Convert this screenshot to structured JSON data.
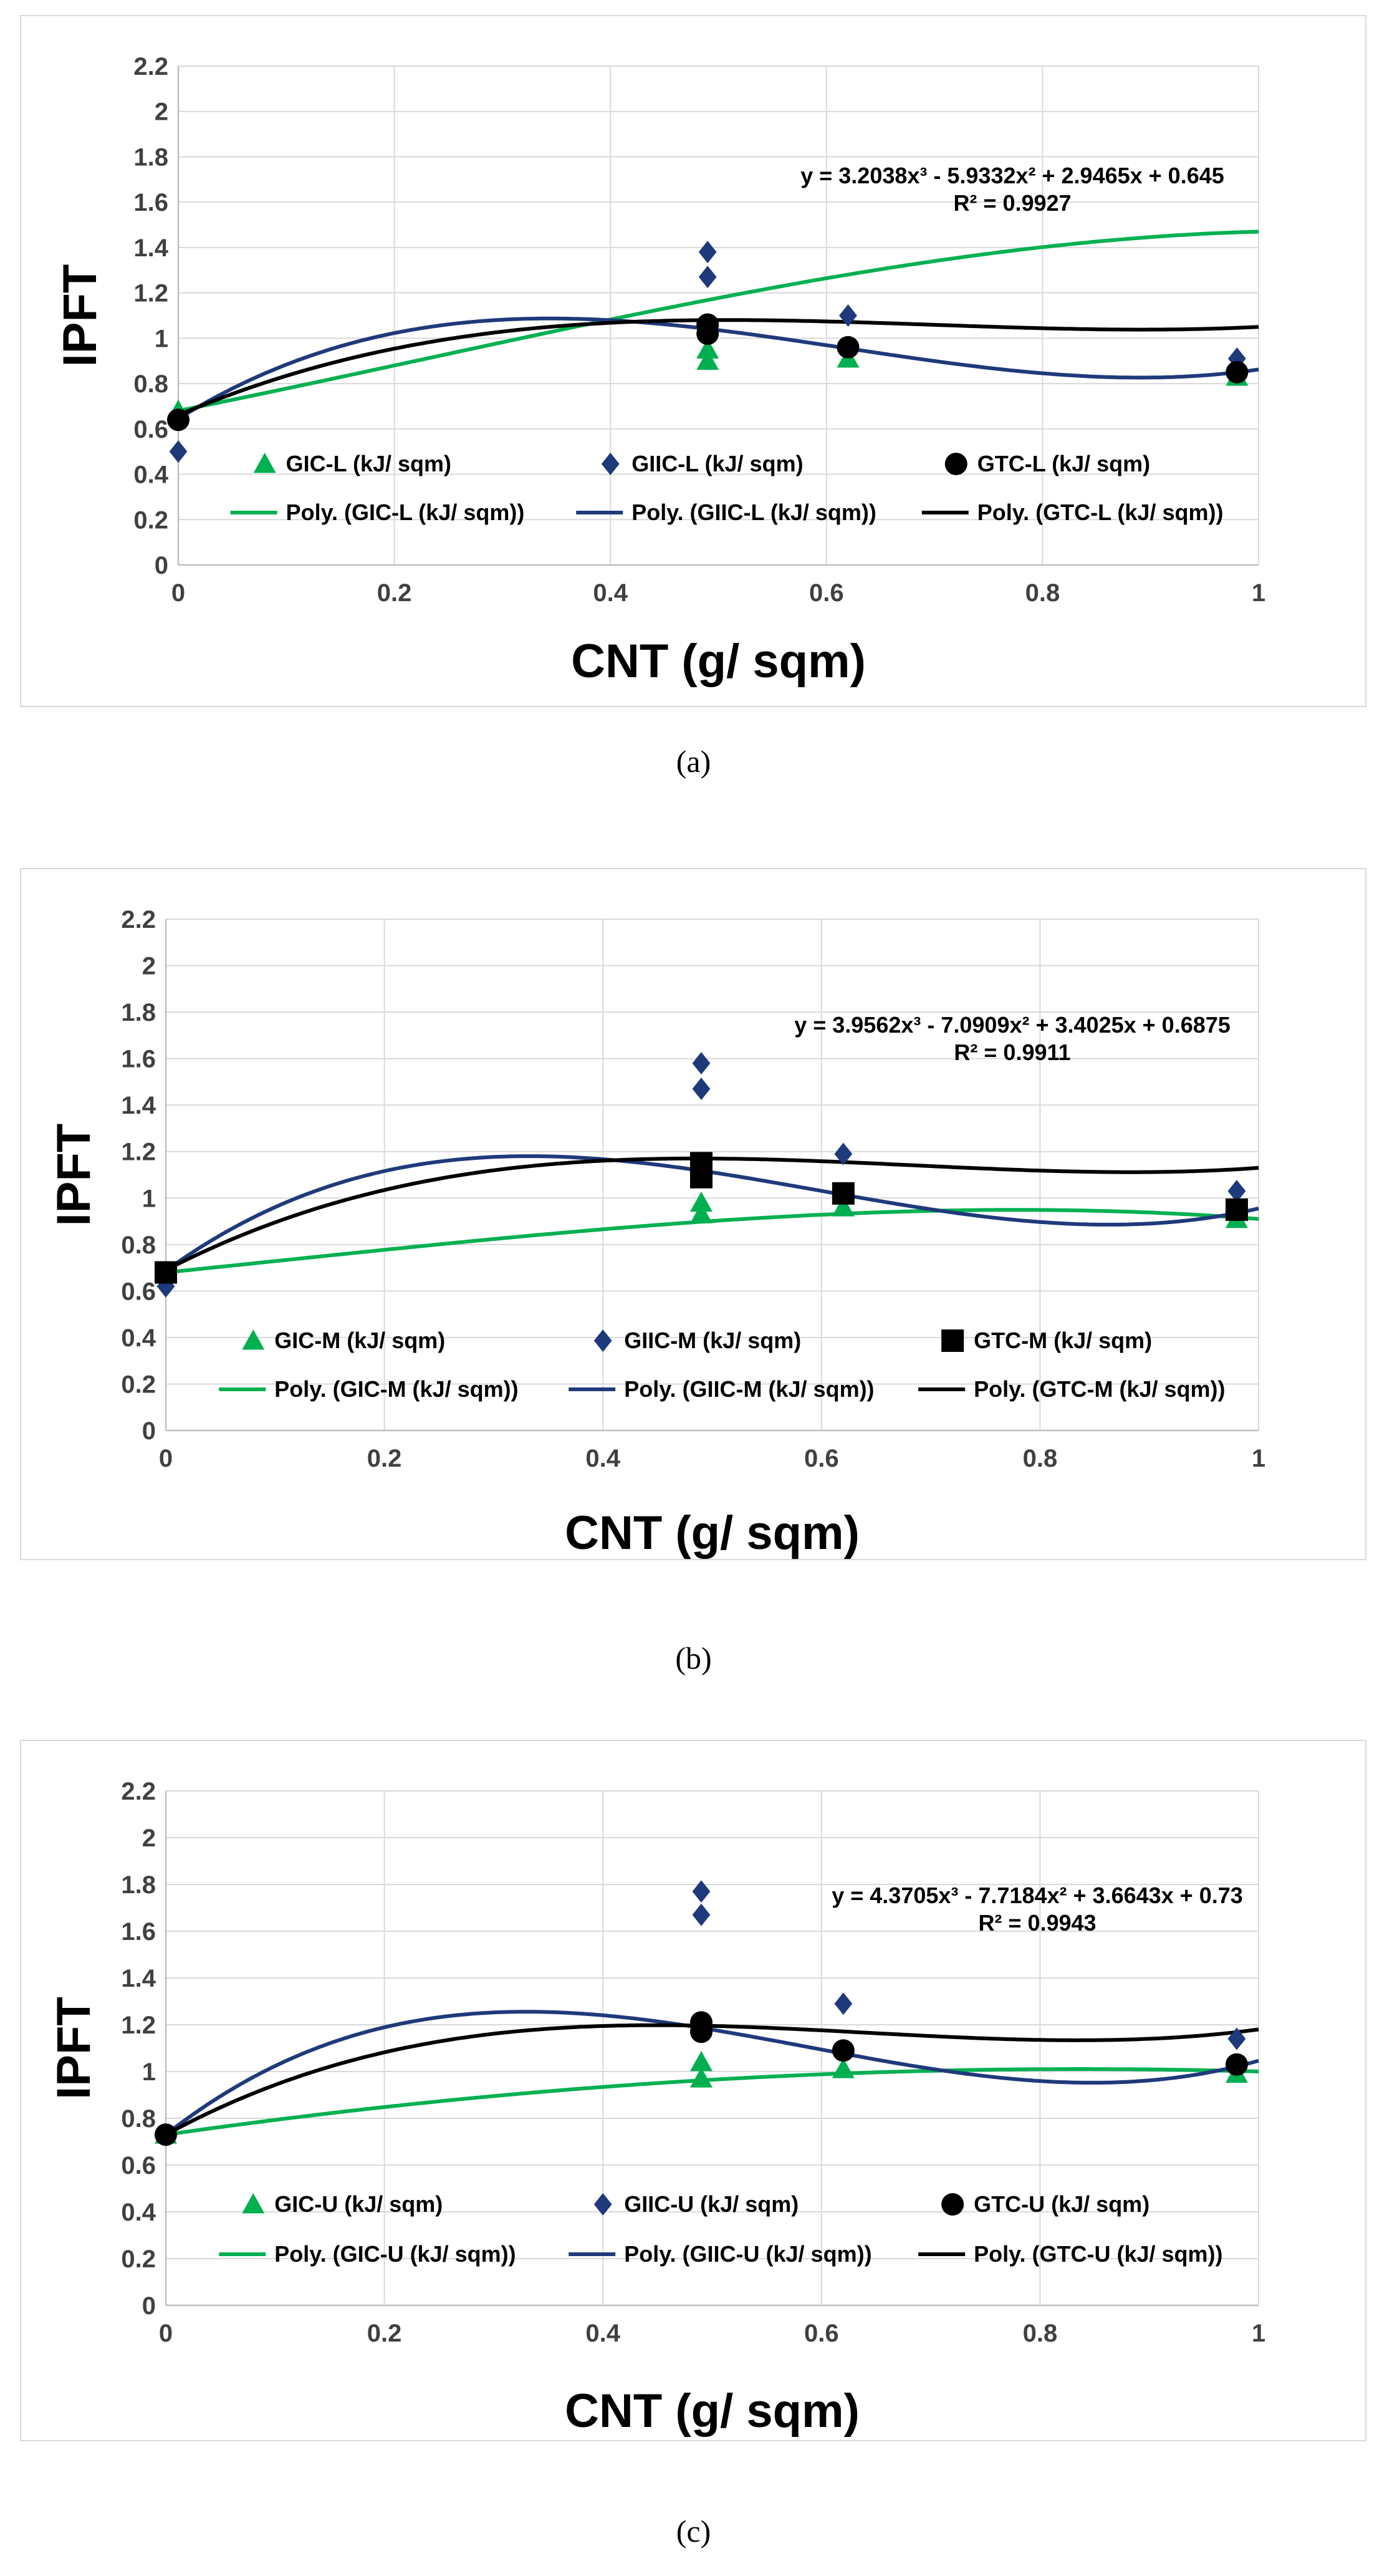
{
  "colors": {
    "gic": "#00b050",
    "giic": "#1f3a7a",
    "gtc": "#000000",
    "grid": "#d9d9d9",
    "axis": "#bfbfbf"
  },
  "chart_data": [
    {
      "type": "scatter",
      "caption": "(a)",
      "xlabel": "CNT (g/ sqm)",
      "ylabel": "IPFT",
      "xlim": [
        0,
        1
      ],
      "ylim": [
        0,
        2.2
      ],
      "xticks": [
        "0",
        "0.2",
        "0.4",
        "0.6",
        "0.8",
        "1"
      ],
      "yticks": [
        "0",
        "0.2",
        "0.4",
        "0.6",
        "0.8",
        "1",
        "1.2",
        "1.4",
        "1.6",
        "1.8",
        "2",
        "2.2"
      ],
      "equation": "y = 3.2038x³ - 5.9332x² + 2.9465x + 0.645",
      "r2": "R² = 0.9927",
      "series": [
        {
          "name": "GIC-L (kJ/ sqm)",
          "marker": "triangle",
          "color": "#00b050",
          "x": [
            0,
            0.49,
            0.49,
            0.62,
            0.98
          ],
          "y": [
            0.68,
            0.9,
            0.95,
            0.91,
            0.83
          ]
        },
        {
          "name": "GIIC-L (kJ/ sqm)",
          "marker": "diamond",
          "color": "#1f3a7a",
          "x": [
            0,
            0.49,
            0.49,
            0.62,
            0.98
          ],
          "y": [
            0.5,
            1.27,
            1.38,
            1.1,
            0.91
          ]
        },
        {
          "name": "GTC-L (kJ/ sqm)",
          "marker": "circle",
          "color": "#000000",
          "x": [
            0,
            0.49,
            0.49,
            0.62,
            0.98
          ],
          "y": [
            0.64,
            1.02,
            1.06,
            0.96,
            0.85
          ]
        }
      ],
      "trendlines": [
        {
          "name": "Poly. (GIC-L (kJ/ sqm))",
          "color": "#00b050",
          "coef": [
            -0.5,
            0.34,
            0.95,
            0.68
          ]
        },
        {
          "name": "Poly. (GIIC-L (kJ/ sqm))",
          "color": "#1f3a7a",
          "coef": [
            3.2038,
            -5.9332,
            2.9465,
            0.645
          ]
        },
        {
          "name": "Poly. (GTC-L (kJ/ sqm))",
          "color": "#000000",
          "coef": [
            1.5,
            -3.15,
            2.04,
            0.66
          ]
        }
      ]
    },
    {
      "type": "scatter",
      "caption": "(b)",
      "xlabel": "CNT (g/ sqm)",
      "ylabel": "IPFT",
      "xlim": [
        0,
        1
      ],
      "ylim": [
        0,
        2.2
      ],
      "xticks": [
        "0",
        "0.2",
        "0.4",
        "0.6",
        "0.8",
        "1"
      ],
      "yticks": [
        "0",
        "0.2",
        "0.4",
        "0.6",
        "0.8",
        "1",
        "1.2",
        "1.4",
        "1.6",
        "1.8",
        "2",
        "2.2"
      ],
      "equation": "y = 3.9562x³ - 7.0909x² + 3.4025x + 0.6875",
      "r2": "R² = 0.9911",
      "series": [
        {
          "name": "GIC-M (kJ/ sqm)",
          "marker": "triangle",
          "color": "#00b050",
          "x": [
            0,
            0.49,
            0.49,
            0.62,
            0.98
          ],
          "y": [
            0.68,
            0.93,
            0.98,
            0.96,
            0.91
          ]
        },
        {
          "name": "GIIC-M (kJ/ sqm)",
          "marker": "diamond",
          "color": "#1f3a7a",
          "x": [
            0,
            0.49,
            0.49,
            0.62,
            0.98
          ],
          "y": [
            0.62,
            1.47,
            1.58,
            1.19,
            1.03
          ]
        },
        {
          "name": "GTC-M (kJ/ sqm)",
          "marker": "square",
          "color": "#000000",
          "x": [
            0,
            0.49,
            0.49,
            0.62,
            0.98
          ],
          "y": [
            0.68,
            1.09,
            1.15,
            1.02,
            0.95
          ]
        }
      ],
      "trendlines": [
        {
          "name": "Poly. (GIC-M (kJ/ sqm))",
          "color": "#00b050",
          "coef": [
            -0.35,
            0.1,
            0.48,
            0.68
          ]
        },
        {
          "name": "Poly. (GIIC-M (kJ/ sqm))",
          "color": "#1f3a7a",
          "coef": [
            3.9562,
            -7.0909,
            3.4025,
            0.6875
          ]
        },
        {
          "name": "Poly. (GTC-M (kJ/ sqm))",
          "color": "#000000",
          "coef": [
            1.88,
            -3.86,
            2.42,
            0.69
          ]
        }
      ]
    },
    {
      "type": "scatter",
      "caption": "(c)",
      "xlabel": "CNT (g/ sqm)",
      "ylabel": "IPFT",
      "xlim": [
        0,
        1
      ],
      "ylim": [
        0,
        2.2
      ],
      "xticks": [
        "0",
        "0.2",
        "0.4",
        "0.6",
        "0.8",
        "1"
      ],
      "yticks": [
        "0",
        "0.2",
        "0.4",
        "0.6",
        "0.8",
        "1",
        "1.2",
        "1.4",
        "1.6",
        "1.8",
        "2",
        "2.2"
      ],
      "equation": "y = 4.3705x³ - 7.7184x² + 3.6643x + 0.73",
      "r2": "R² = 0.9943",
      "series": [
        {
          "name": "GIC-U (kJ/ sqm)",
          "marker": "triangle",
          "color": "#00b050",
          "x": [
            0,
            0.49,
            0.49,
            0.62,
            0.98
          ],
          "y": [
            0.73,
            0.97,
            1.04,
            1.01,
            0.99
          ]
        },
        {
          "name": "GIIC-U (kJ/ sqm)",
          "marker": "diamond",
          "color": "#1f3a7a",
          "x": [
            0,
            0.49,
            0.49,
            0.62,
            0.98
          ],
          "y": [
            0.73,
            1.67,
            1.77,
            1.29,
            1.14
          ]
        },
        {
          "name": "GTC-U (kJ/ sqm)",
          "marker": "circle",
          "color": "#000000",
          "x": [
            0,
            0.49,
            0.49,
            0.62,
            0.98
          ],
          "y": [
            0.73,
            1.17,
            1.21,
            1.09,
            1.03
          ]
        }
      ],
      "trendlines": [
        {
          "name": "Poly. (GIC-U (kJ/ sqm))",
          "color": "#00b050",
          "coef": [
            0,
            -0.4,
            0.67,
            0.73
          ]
        },
        {
          "name": "Poly. (GIIC-U (kJ/ sqm))",
          "color": "#1f3a7a",
          "coef": [
            4.3705,
            -7.7184,
            3.6643,
            0.73
          ]
        },
        {
          "name": "Poly. (GTC-U (kJ/ sqm))",
          "color": "#000000",
          "coef": [
            2.26,
            -4.35,
            2.54,
            0.73
          ]
        }
      ]
    }
  ]
}
